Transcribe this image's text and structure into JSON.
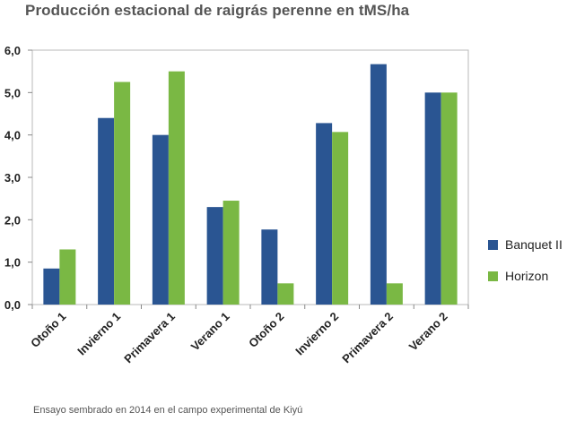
{
  "chart_data": {
    "type": "bar",
    "title": "Producción estacional de raigrás perenne en tMS/ha",
    "xlabel": "",
    "ylabel": "",
    "categories": [
      "Otoño 1",
      "Invierno 1",
      "Primavera 1",
      "Verano 1",
      "Otoño 2",
      "Invierno 2",
      "Primavera 2",
      "Verano 2"
    ],
    "series": [
      {
        "name": "Banquet II",
        "color": "#2a5592",
        "values": [
          0.85,
          4.4,
          4.0,
          2.3,
          1.77,
          4.28,
          5.67,
          5.0
        ]
      },
      {
        "name": "Horizon",
        "color": "#7ab844",
        "values": [
          1.3,
          5.25,
          5.5,
          2.45,
          0.5,
          4.07,
          0.5,
          5.0
        ]
      }
    ],
    "ylim": [
      0,
      6
    ],
    "yticks": [
      "0,0",
      "1,0",
      "2,0",
      "3,0",
      "4,0",
      "5,0",
      "6,0"
    ],
    "grid": false,
    "legend_position": "right"
  },
  "footnote": "Ensayo sembrado en 2014 en el campo experimental de Kiyú"
}
